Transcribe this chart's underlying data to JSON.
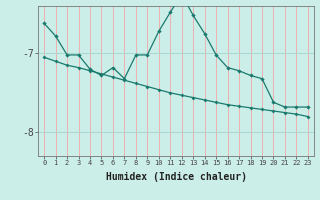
{
  "xlabel": "Humidex (Indice chaleur)",
  "bg_color": "#cceee8",
  "line_color": "#1a7a6e",
  "grid_color_v": "#f0b0b0",
  "grid_color_h": "#a8d8d0",
  "ylim": [
    -8.3,
    -6.4
  ],
  "xlim": [
    -0.5,
    23.5
  ],
  "yticks": [
    -8,
    -7
  ],
  "ytick_labels": [
    "-8",
    "-7"
  ],
  "xticks": [
    0,
    1,
    2,
    3,
    4,
    5,
    6,
    7,
    8,
    9,
    10,
    11,
    12,
    13,
    14,
    15,
    16,
    17,
    18,
    19,
    20,
    21,
    22,
    23
  ],
  "series1_x": [
    0,
    1,
    2,
    3,
    4,
    5,
    6,
    7,
    8,
    9,
    10,
    11,
    12,
    13,
    14,
    15,
    16,
    17,
    18,
    19,
    20,
    21,
    22,
    23
  ],
  "series1_y": [
    -6.62,
    -6.78,
    -7.02,
    -7.02,
    -7.2,
    -7.28,
    -7.18,
    -7.32,
    -7.02,
    -7.02,
    -6.72,
    -6.48,
    -6.25,
    -6.52,
    -6.75,
    -7.02,
    -7.18,
    -7.22,
    -7.28,
    -7.32,
    -7.62,
    -7.68,
    -7.68,
    -7.68
  ],
  "series2_x": [
    0,
    1,
    2,
    3,
    4,
    5,
    6,
    7,
    8,
    9,
    10,
    11,
    12,
    13,
    14,
    15,
    16,
    17,
    18,
    19,
    20,
    21,
    22,
    23
  ],
  "series2_y": [
    -7.05,
    -7.1,
    -7.15,
    -7.18,
    -7.22,
    -7.26,
    -7.3,
    -7.34,
    -7.38,
    -7.42,
    -7.46,
    -7.5,
    -7.53,
    -7.56,
    -7.59,
    -7.62,
    -7.65,
    -7.67,
    -7.69,
    -7.71,
    -7.73,
    -7.75,
    -7.77,
    -7.8
  ]
}
